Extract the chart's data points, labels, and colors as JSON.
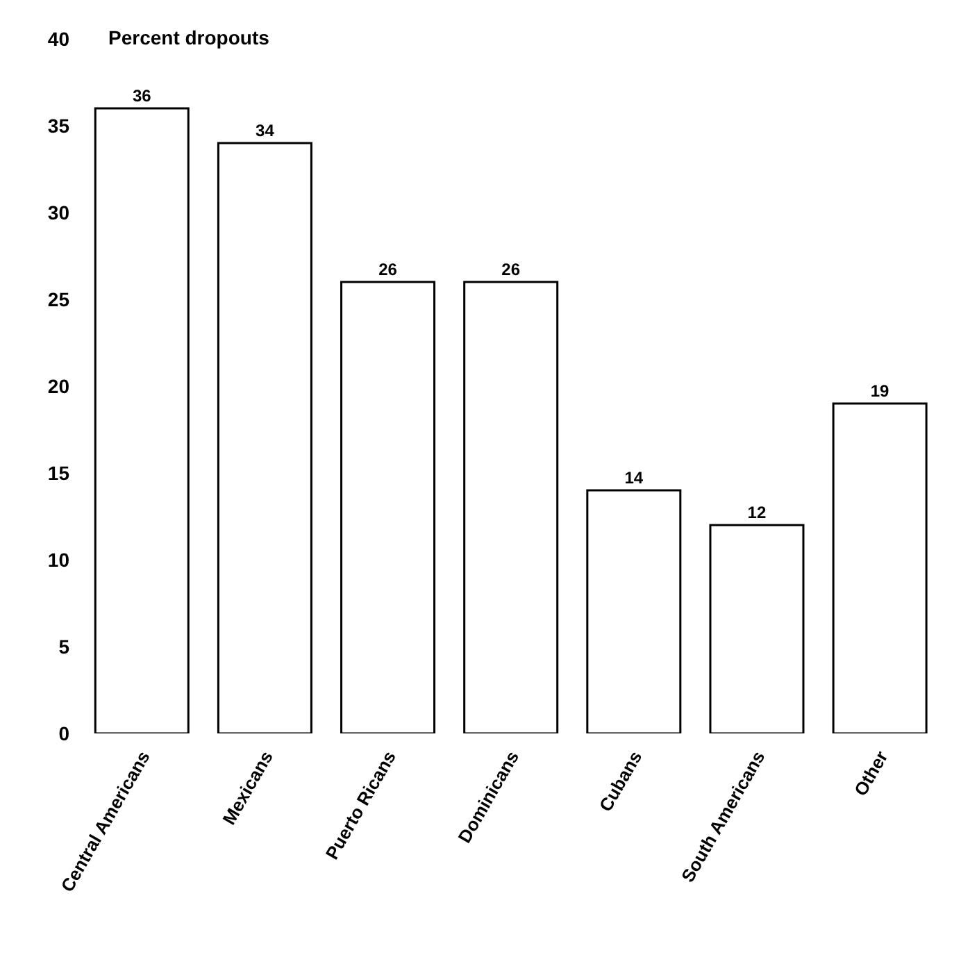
{
  "chart_data": {
    "type": "bar",
    "ylabel": "Percent dropouts",
    "categories": [
      "Central Americans",
      "Mexicans",
      "Puerto Ricans",
      "Dominicans",
      "Cubans",
      "South Americans",
      "Other"
    ],
    "values": [
      36,
      34,
      26,
      26,
      14,
      12,
      19
    ],
    "color": "#ffffff",
    "ylim": [
      0,
      40
    ],
    "yticks": [
      0,
      5,
      10,
      15,
      20,
      25,
      30,
      35,
      40
    ],
    "data_labels": true,
    "grid": false,
    "legend": false
  }
}
